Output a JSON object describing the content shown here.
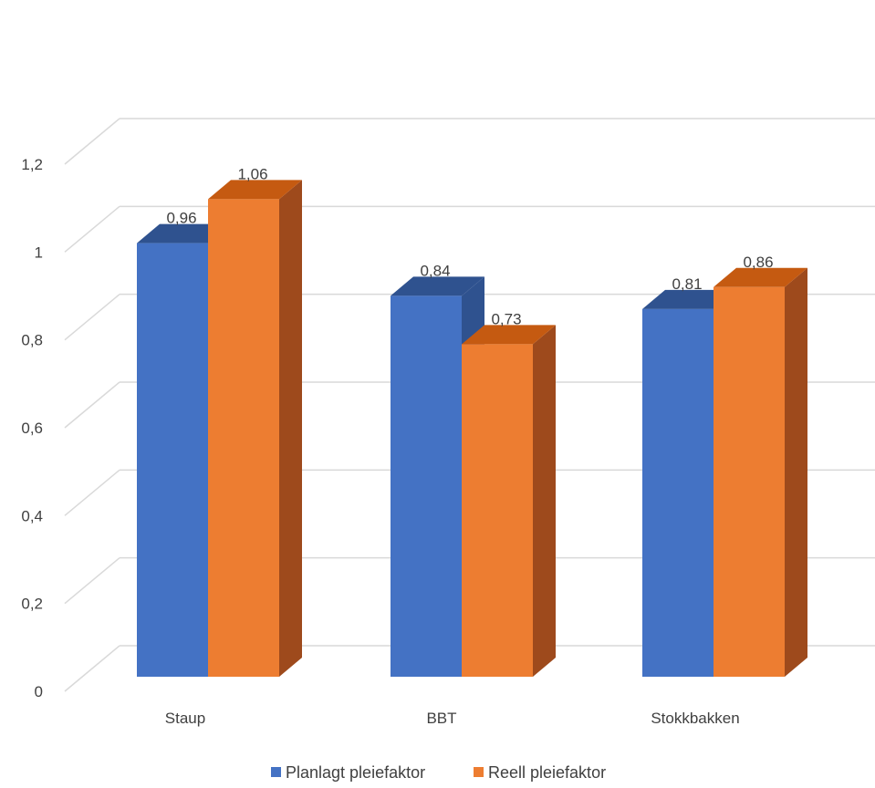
{
  "chart_data": {
    "type": "bar",
    "title": "",
    "xlabel": "",
    "ylabel": "",
    "categories": [
      "Staup",
      "BBT",
      "Stokkbakken"
    ],
    "series": [
      {
        "name": "Planlagt pleiefaktor",
        "values": [
          0.96,
          0.84,
          0.81
        ],
        "labels": [
          "0,96",
          "0,84",
          "0,81"
        ],
        "color": "#4472C4",
        "top_color": "#2F528F",
        "side_color": "#2F528F"
      },
      {
        "name": "Reell pleiefaktor",
        "values": [
          1.06,
          0.73,
          0.86
        ],
        "labels": [
          "1,06",
          "0,73",
          "0,86"
        ],
        "color": "#ED7D31",
        "top_color": "#C55A11",
        "side_color": "#9E4A1C"
      }
    ],
    "ylim": [
      0,
      1.2
    ],
    "yticks": [
      0,
      0.2,
      0.4,
      0.6,
      0.8,
      1,
      1.2
    ],
    "ytick_labels": [
      "0",
      "0,2",
      "0,4",
      "0,6",
      "0,8",
      "1",
      "1,2"
    ],
    "grid": true,
    "legend_position": "bottom",
    "style": "3d-column"
  }
}
